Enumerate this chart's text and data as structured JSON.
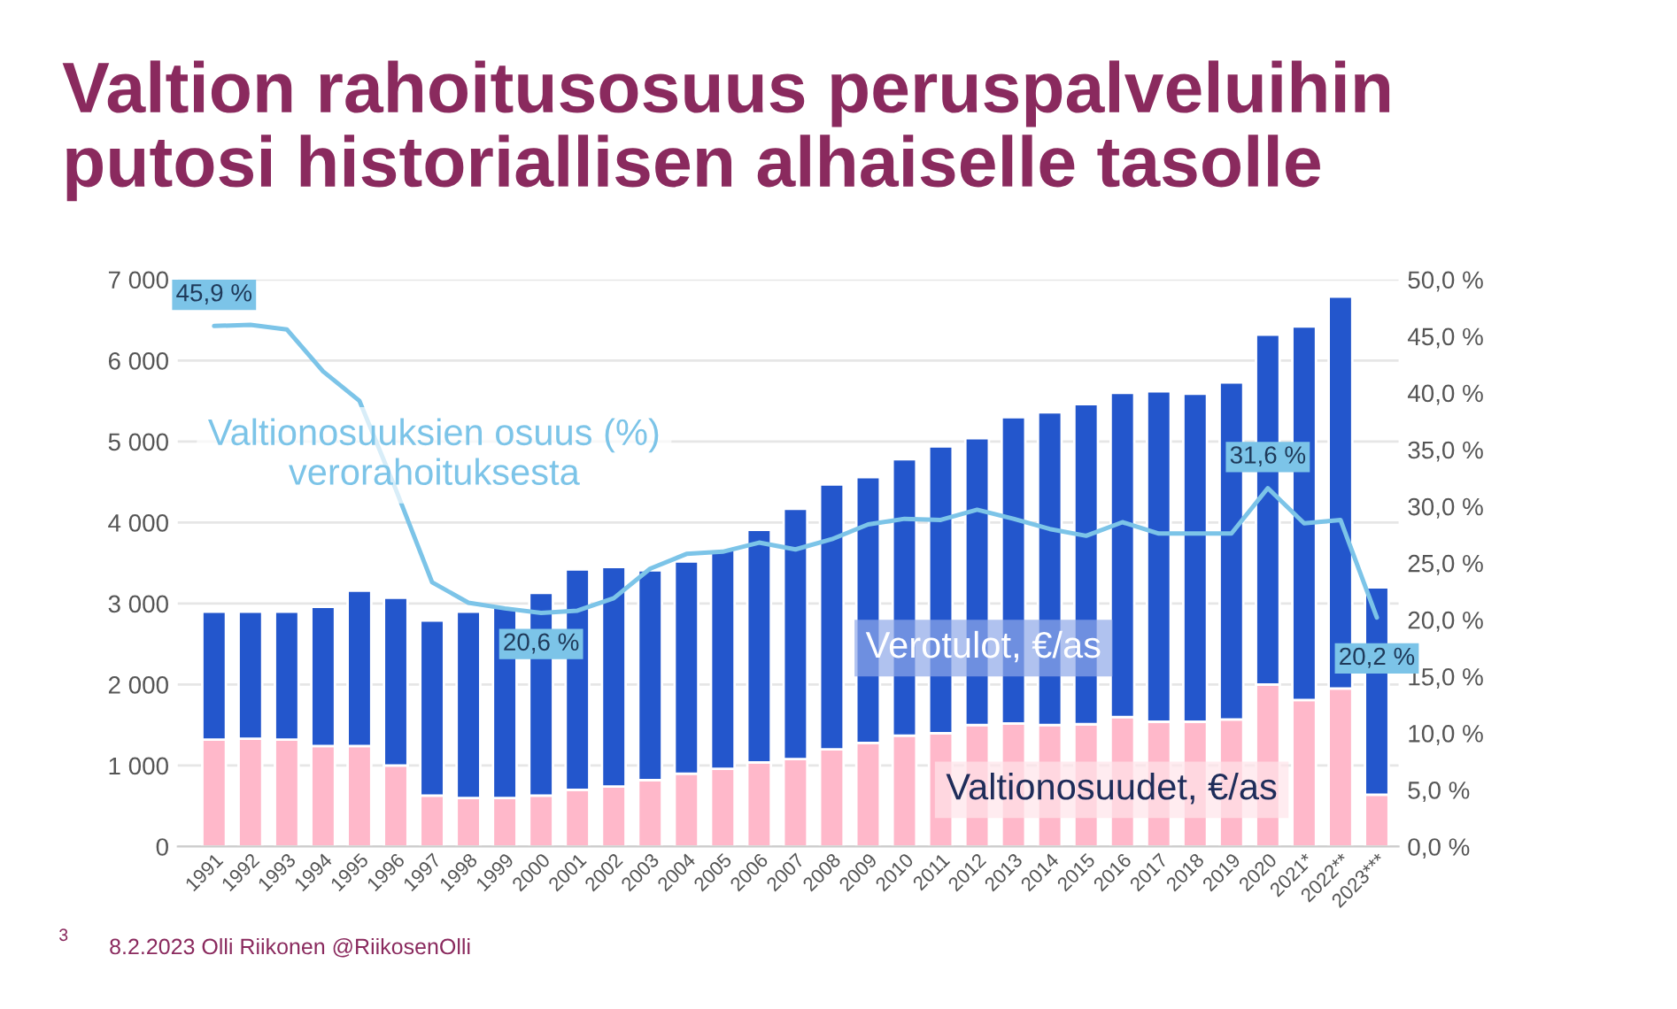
{
  "chart_data": {
    "type": "bar",
    "title": "Valtion rahoitusosuus peruspalveluihin\nputosi historiallisen alhaiselle tasolle",
    "categories": [
      "1991",
      "1992",
      "1993",
      "1994",
      "1995",
      "1996",
      "1997",
      "1998",
      "1999",
      "2000",
      "2001",
      "2002",
      "2003",
      "2004",
      "2005",
      "2006",
      "2007",
      "2008",
      "2009",
      "2010",
      "2011",
      "2012",
      "2013",
      "2014",
      "2015",
      "2016",
      "2017",
      "2018",
      "2019",
      "2020",
      "2021*",
      "2022**",
      "2023***"
    ],
    "stacked": true,
    "series": [
      {
        "name": "Valtionosuudet, €/as",
        "color": "#ffb8ca",
        "values": [
          1320,
          1330,
          1320,
          1240,
          1240,
          1000,
          630,
          600,
          600,
          630,
          700,
          740,
          820,
          900,
          960,
          1040,
          1080,
          1200,
          1280,
          1370,
          1400,
          1500,
          1520,
          1500,
          1510,
          1600,
          1540,
          1540,
          1570,
          2000,
          1810,
          1950,
          640
        ]
      },
      {
        "name": "Verotulot, €/as",
        "color": "#2356cc",
        "values": [
          1580,
          1570,
          1580,
          1720,
          1920,
          2070,
          2160,
          2300,
          2350,
          2500,
          2720,
          2710,
          2590,
          2620,
          2700,
          2870,
          3090,
          3270,
          3280,
          3410,
          3540,
          3540,
          3780,
          3860,
          3950,
          4000,
          4080,
          4050,
          4160,
          4320,
          4610,
          4840,
          2560
        ]
      },
      {
        "name": "Valtionosuuksien osuus (%)\nverorahoituksesta",
        "type": "line",
        "axis": "y2",
        "color": "#7cc4e8",
        "values": [
          45.9,
          46.0,
          45.6,
          41.9,
          39.3,
          31.5,
          23.3,
          21.5,
          21.0,
          20.6,
          20.8,
          21.9,
          24.5,
          25.8,
          26.0,
          26.8,
          26.2,
          27.1,
          28.4,
          28.9,
          28.8,
          29.7,
          28.9,
          28.0,
          27.4,
          28.6,
          27.6,
          27.6,
          27.6,
          31.6,
          28.5,
          28.8,
          20.2
        ],
        "value_labels": [
          "45,9 %",
          null,
          null,
          null,
          null,
          null,
          null,
          null,
          null,
          "20,6 %",
          null,
          null,
          null,
          null,
          null,
          null,
          null,
          null,
          null,
          null,
          null,
          null,
          null,
          null,
          null,
          null,
          null,
          null,
          null,
          "31,6 %",
          null,
          null,
          "20,2 %"
        ]
      }
    ],
    "ylim": [
      0,
      7000
    ],
    "yticks": [
      {
        "value": 0,
        "label": "0"
      },
      {
        "value": 1000,
        "label": "1 000"
      },
      {
        "value": 2000,
        "label": "2 000"
      },
      {
        "value": 3000,
        "label": "3 000"
      },
      {
        "value": 4000,
        "label": "4 000"
      },
      {
        "value": 5000,
        "label": "5 000"
      },
      {
        "value": 6000,
        "label": "6 000"
      },
      {
        "value": 7000,
        "label": "7 000"
      }
    ],
    "y2lim": [
      0,
      50
    ],
    "y2ticks": [
      {
        "value": 0,
        "label": "0,0 %"
      },
      {
        "value": 5,
        "label": "5,0 %"
      },
      {
        "value": 10,
        "label": "10,0 %"
      },
      {
        "value": 15,
        "label": "15,0 %"
      },
      {
        "value": 20,
        "label": "20,0 %"
      },
      {
        "value": 25,
        "label": "25,0 %"
      },
      {
        "value": 30,
        "label": "30,0 %"
      },
      {
        "value": 35,
        "label": "35,0 %"
      },
      {
        "value": 40,
        "label": "40,0 %"
      },
      {
        "value": 45,
        "label": "45,0 %"
      },
      {
        "value": 50,
        "label": "50,0 %"
      }
    ],
    "grid": "y",
    "legend": false,
    "annotations": [
      "3",
      "8.2.2023 Olli Riikonen @RiikosenOlli"
    ]
  }
}
